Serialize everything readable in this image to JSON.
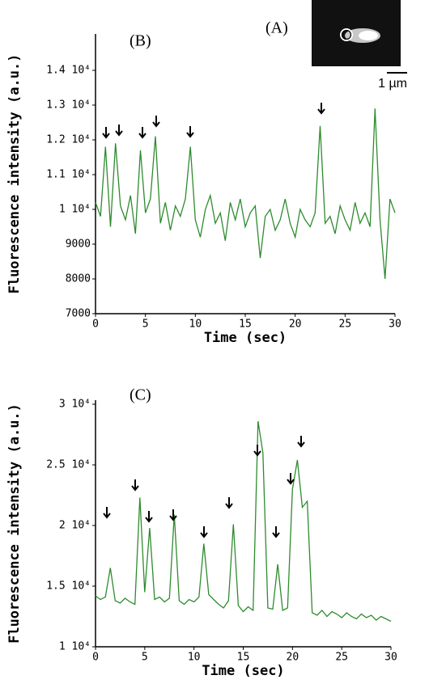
{
  "inset": {
    "label": "(A)",
    "scale_bar": "1 µm"
  },
  "chart_data": [
    {
      "type": "line",
      "panel_label": "(B)",
      "xlabel": "Time (sec)",
      "ylabel": "Fluorescence intensity (a.u.)",
      "color": "#2e8b2e",
      "x": [
        0,
        0.5,
        1,
        1.5,
        2,
        2.5,
        3,
        3.5,
        4,
        4.5,
        5,
        5.5,
        6,
        6.5,
        7,
        7.5,
        8,
        8.5,
        9,
        9.5,
        10,
        10.5,
        11,
        11.5,
        12,
        12.5,
        13,
        13.5,
        14,
        14.5,
        15,
        15.5,
        16,
        16.5,
        17,
        17.5,
        18,
        18.5,
        19,
        19.5,
        20,
        20.5,
        21,
        21.5,
        22,
        22.5,
        23,
        23.5,
        24,
        24.5,
        25,
        25.5,
        26,
        26.5,
        27,
        27.5,
        28,
        28.5,
        29,
        29.5,
        30
      ],
      "values": [
        10200,
        9800,
        11800,
        9500,
        11900,
        10100,
        9700,
        10400,
        9300,
        11700,
        9900,
        10300,
        12100,
        9600,
        10200,
        9400,
        10100,
        9800,
        10300,
        11800,
        9700,
        9200,
        10000,
        10400,
        9600,
        9900,
        9100,
        10200,
        9700,
        10300,
        9500,
        9900,
        10100,
        8600,
        9800,
        10000,
        9400,
        9700,
        10300,
        9600,
        9200,
        10000,
        9700,
        9500,
        9900,
        12400,
        9600,
        9800,
        9300,
        10100,
        9700,
        9400,
        10200,
        9600,
        9900,
        9500,
        12900,
        9700,
        8000,
        10300,
        9900
      ],
      "xlim": [
        0,
        30
      ],
      "xticks": [
        0,
        5,
        10,
        15,
        20,
        25,
        30
      ],
      "ylim": [
        7000,
        14000
      ],
      "yticks": [
        7000,
        8000,
        9000,
        {
          "value": 10000,
          "label": "1 10⁴"
        },
        {
          "value": 11000,
          "label": "1.1 10⁴"
        },
        {
          "value": 12000,
          "label": "1.2 10⁴"
        },
        {
          "value": 13000,
          "label": "1.3 10⁴"
        },
        {
          "value": 14000,
          "label": "1.4 10⁴"
        }
      ]
    },
    {
      "type": "line",
      "panel_label": "(C)",
      "xlabel": "Time (sec)",
      "ylabel": "Fluorescence intensity (a.u.)",
      "color": "#2e8b2e",
      "x": [
        0,
        0.5,
        1,
        1.5,
        2,
        2.5,
        3,
        3.5,
        4,
        4.5,
        5,
        5.5,
        6,
        6.5,
        7,
        7.5,
        8,
        8.5,
        9,
        9.5,
        10,
        10.5,
        11,
        11.5,
        12,
        12.5,
        13,
        13.5,
        14,
        14.5,
        15,
        15.5,
        16,
        16.5,
        17,
        17.5,
        18,
        18.5,
        19,
        19.5,
        20,
        20.5,
        21,
        21.5,
        22,
        22.5,
        23,
        23.5,
        24,
        24.5,
        25,
        25.5,
        26,
        26.5,
        27,
        27.5,
        28,
        28.5,
        29,
        29.5,
        30
      ],
      "values": [
        14200,
        13900,
        14100,
        16500,
        13800,
        13600,
        14000,
        13700,
        13500,
        22300,
        14500,
        19800,
        13900,
        14100,
        13700,
        14000,
        20900,
        13800,
        13500,
        13900,
        13700,
        14100,
        18500,
        14300,
        13900,
        13500,
        13200,
        13800,
        20100,
        13400,
        12900,
        13300,
        13000,
        28600,
        26000,
        13200,
        13100,
        16800,
        13000,
        13200,
        23000,
        25400,
        21500,
        22000,
        12800,
        12600,
        13000,
        12500,
        12900,
        12700,
        12400,
        12800,
        12500,
        12300,
        12700,
        12400,
        12600,
        12200,
        12500,
        12300,
        12100
      ],
      "xlim": [
        0,
        30
      ],
      "xticks": [
        0,
        5,
        10,
        15,
        20,
        25,
        30
      ],
      "ylim": [
        10000,
        30000
      ],
      "yticks": [
        {
          "value": 10000,
          "label": "1 10⁴"
        },
        {
          "value": 15000,
          "label": "1.5 10⁴"
        },
        {
          "value": 20000,
          "label": "2 10⁴"
        },
        {
          "value": 25000,
          "label": "2.5 10⁴"
        },
        {
          "value": 30000,
          "label": "3 10⁴"
        }
      ]
    }
  ]
}
